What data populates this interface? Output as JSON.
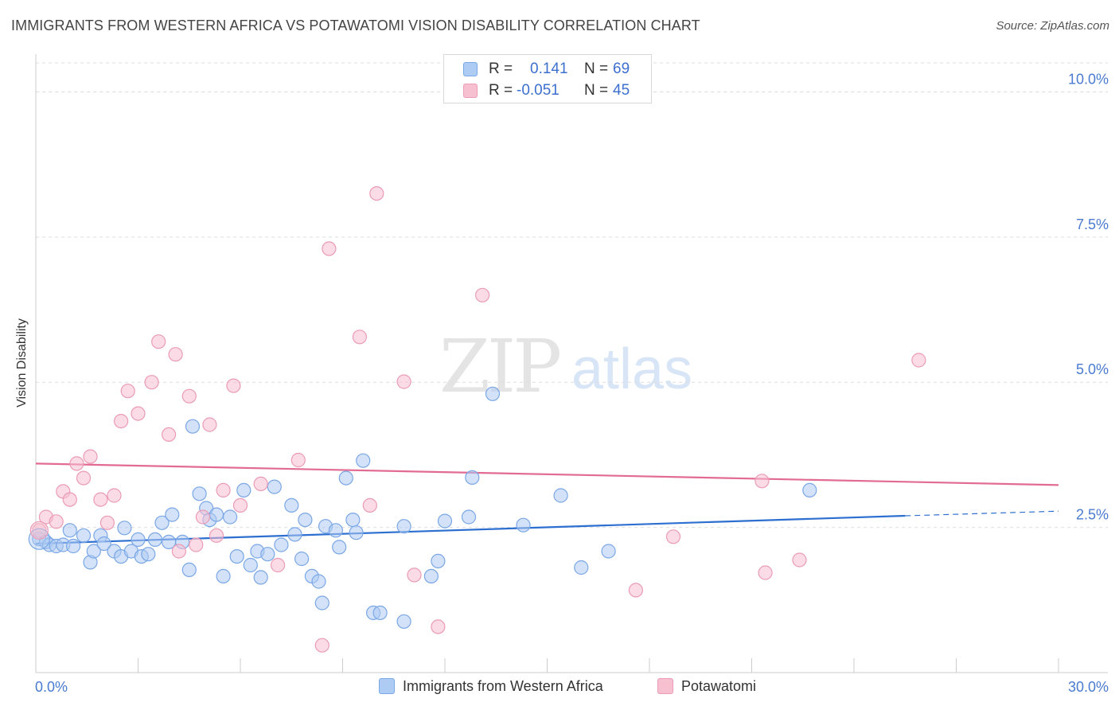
{
  "header": {
    "title": "IMMIGRANTS FROM WESTERN AFRICA VS POTAWATOMI VISION DISABILITY CORRELATION CHART",
    "source": "Source: ZipAtlas.com"
  },
  "watermark": {
    "zip": "ZIP",
    "atlas": "atlas"
  },
  "legend": {
    "rows": [
      {
        "r_label": "R =",
        "r_value": "0.141",
        "n_label": "N =",
        "n_value": "69"
      },
      {
        "r_label": "R =",
        "r_value": "-0.051",
        "n_label": "N =",
        "n_value": "45"
      }
    ]
  },
  "colors": {
    "series1_fill": "#aecbf3",
    "series1_stroke": "#7aa7e6",
    "series1_line": "#2d6fd0",
    "series2_fill": "#f7c0d1",
    "series2_stroke": "#eb9bb5",
    "series2_line": "#e26b94",
    "axis_label": "#4a7bd0",
    "grid": "#dddddd"
  },
  "chart_data": {
    "type": "scatter",
    "title": "IMMIGRANTS FROM WESTERN AFRICA VS POTAWATOMI VISION DISABILITY CORRELATION CHART",
    "xlabel": "",
    "ylabel": "Vision Disability",
    "xlim": [
      0,
      30
    ],
    "ylim": [
      0,
      10.5
    ],
    "x_tick_labels": [
      "0.0%",
      "30.0%"
    ],
    "y_ticks": [
      {
        "value": 2.5,
        "label": "2.5%"
      },
      {
        "value": 5.0,
        "label": "5.0%"
      },
      {
        "value": 7.5,
        "label": "7.5%"
      },
      {
        "value": 10.0,
        "label": "10.0%"
      }
    ],
    "grid": true,
    "legend_position": "top-center",
    "series": [
      {
        "name": "Immigrants from Western Africa",
        "r": 0.141,
        "n": 69,
        "trend": {
          "x0": 0,
          "y0": 2.22,
          "x1": 25.5,
          "y1": 2.7,
          "x_dash_end": 30,
          "y_dash_end": 2.78
        },
        "points": [
          [
            0.1,
            2.3
          ],
          [
            0.3,
            2.25
          ],
          [
            0.4,
            2.2
          ],
          [
            0.6,
            2.18
          ],
          [
            0.8,
            2.2
          ],
          [
            1.0,
            2.45
          ],
          [
            1.1,
            2.18
          ],
          [
            1.4,
            2.36
          ],
          [
            1.6,
            1.9
          ],
          [
            1.7,
            2.09
          ],
          [
            1.9,
            2.36
          ],
          [
            2.0,
            2.22
          ],
          [
            2.3,
            2.09
          ],
          [
            2.5,
            2.0
          ],
          [
            2.6,
            2.49
          ],
          [
            2.8,
            2.09
          ],
          [
            3.0,
            2.29
          ],
          [
            3.1,
            2.0
          ],
          [
            3.3,
            2.04
          ],
          [
            3.5,
            2.29
          ],
          [
            3.7,
            2.58
          ],
          [
            3.9,
            2.25
          ],
          [
            4.0,
            2.72
          ],
          [
            4.3,
            2.25
          ],
          [
            4.5,
            1.77
          ],
          [
            4.6,
            4.24
          ],
          [
            4.8,
            3.08
          ],
          [
            5.0,
            2.83
          ],
          [
            5.1,
            2.63
          ],
          [
            5.3,
            2.72
          ],
          [
            5.5,
            1.66
          ],
          [
            5.7,
            2.68
          ],
          [
            5.9,
            2.0
          ],
          [
            6.1,
            3.14
          ],
          [
            6.3,
            1.85
          ],
          [
            6.5,
            2.09
          ],
          [
            6.6,
            1.64
          ],
          [
            6.8,
            2.04
          ],
          [
            7.0,
            3.2
          ],
          [
            7.2,
            2.2
          ],
          [
            7.5,
            2.88
          ],
          [
            7.6,
            2.38
          ],
          [
            7.8,
            1.96
          ],
          [
            7.9,
            2.63
          ],
          [
            8.1,
            1.66
          ],
          [
            8.3,
            1.57
          ],
          [
            8.4,
            1.2
          ],
          [
            8.5,
            2.52
          ],
          [
            8.8,
            2.45
          ],
          [
            8.9,
            2.16
          ],
          [
            9.1,
            3.35
          ],
          [
            9.3,
            2.63
          ],
          [
            9.4,
            2.41
          ],
          [
            9.6,
            3.65
          ],
          [
            9.9,
            1.03
          ],
          [
            10.1,
            1.03
          ],
          [
            10.8,
            2.52
          ],
          [
            10.8,
            0.88
          ],
          [
            11.6,
            1.66
          ],
          [
            11.8,
            1.92
          ],
          [
            12.0,
            2.61
          ],
          [
            12.7,
            2.68
          ],
          [
            12.8,
            3.36
          ],
          [
            13.4,
            4.8
          ],
          [
            14.3,
            2.54
          ],
          [
            15.4,
            3.05
          ],
          [
            16.0,
            1.81
          ],
          [
            16.8,
            2.09
          ],
          [
            22.7,
            3.14
          ]
        ]
      },
      {
        "name": "Potawatomi",
        "r": -0.051,
        "n": 45,
        "trend": {
          "x0": 0,
          "y0": 3.6,
          "x1": 30,
          "y1": 3.23
        },
        "points": [
          [
            0.1,
            2.45
          ],
          [
            0.3,
            2.68
          ],
          [
            0.6,
            2.6
          ],
          [
            0.8,
            3.12
          ],
          [
            1.0,
            2.98
          ],
          [
            1.2,
            3.6
          ],
          [
            1.4,
            3.35
          ],
          [
            1.6,
            3.72
          ],
          [
            1.9,
            2.98
          ],
          [
            2.1,
            2.58
          ],
          [
            2.3,
            3.05
          ],
          [
            2.5,
            4.33
          ],
          [
            2.7,
            4.85
          ],
          [
            3.0,
            4.46
          ],
          [
            3.4,
            5.0
          ],
          [
            3.6,
            5.7
          ],
          [
            3.9,
            4.1
          ],
          [
            4.1,
            5.48
          ],
          [
            4.2,
            2.09
          ],
          [
            4.5,
            4.76
          ],
          [
            4.7,
            2.2
          ],
          [
            4.9,
            2.68
          ],
          [
            5.1,
            4.27
          ],
          [
            5.3,
            2.36
          ],
          [
            5.5,
            3.14
          ],
          [
            5.8,
            4.94
          ],
          [
            6.0,
            2.88
          ],
          [
            6.6,
            3.25
          ],
          [
            7.1,
            1.85
          ],
          [
            7.7,
            3.66
          ],
          [
            8.4,
            0.47
          ],
          [
            8.6,
            7.3
          ],
          [
            9.5,
            5.78
          ],
          [
            9.8,
            2.88
          ],
          [
            10.0,
            8.25
          ],
          [
            10.8,
            5.01
          ],
          [
            11.1,
            1.68
          ],
          [
            11.8,
            0.79
          ],
          [
            13.1,
            6.5
          ],
          [
            17.6,
            1.42
          ],
          [
            18.7,
            2.34
          ],
          [
            21.3,
            3.3
          ],
          [
            21.4,
            1.72
          ],
          [
            22.4,
            1.94
          ],
          [
            25.9,
            5.38
          ]
        ]
      }
    ]
  },
  "bottom_legend": [
    {
      "label": "Immigrants from Western Africa"
    },
    {
      "label": "Potawatomi"
    }
  ]
}
